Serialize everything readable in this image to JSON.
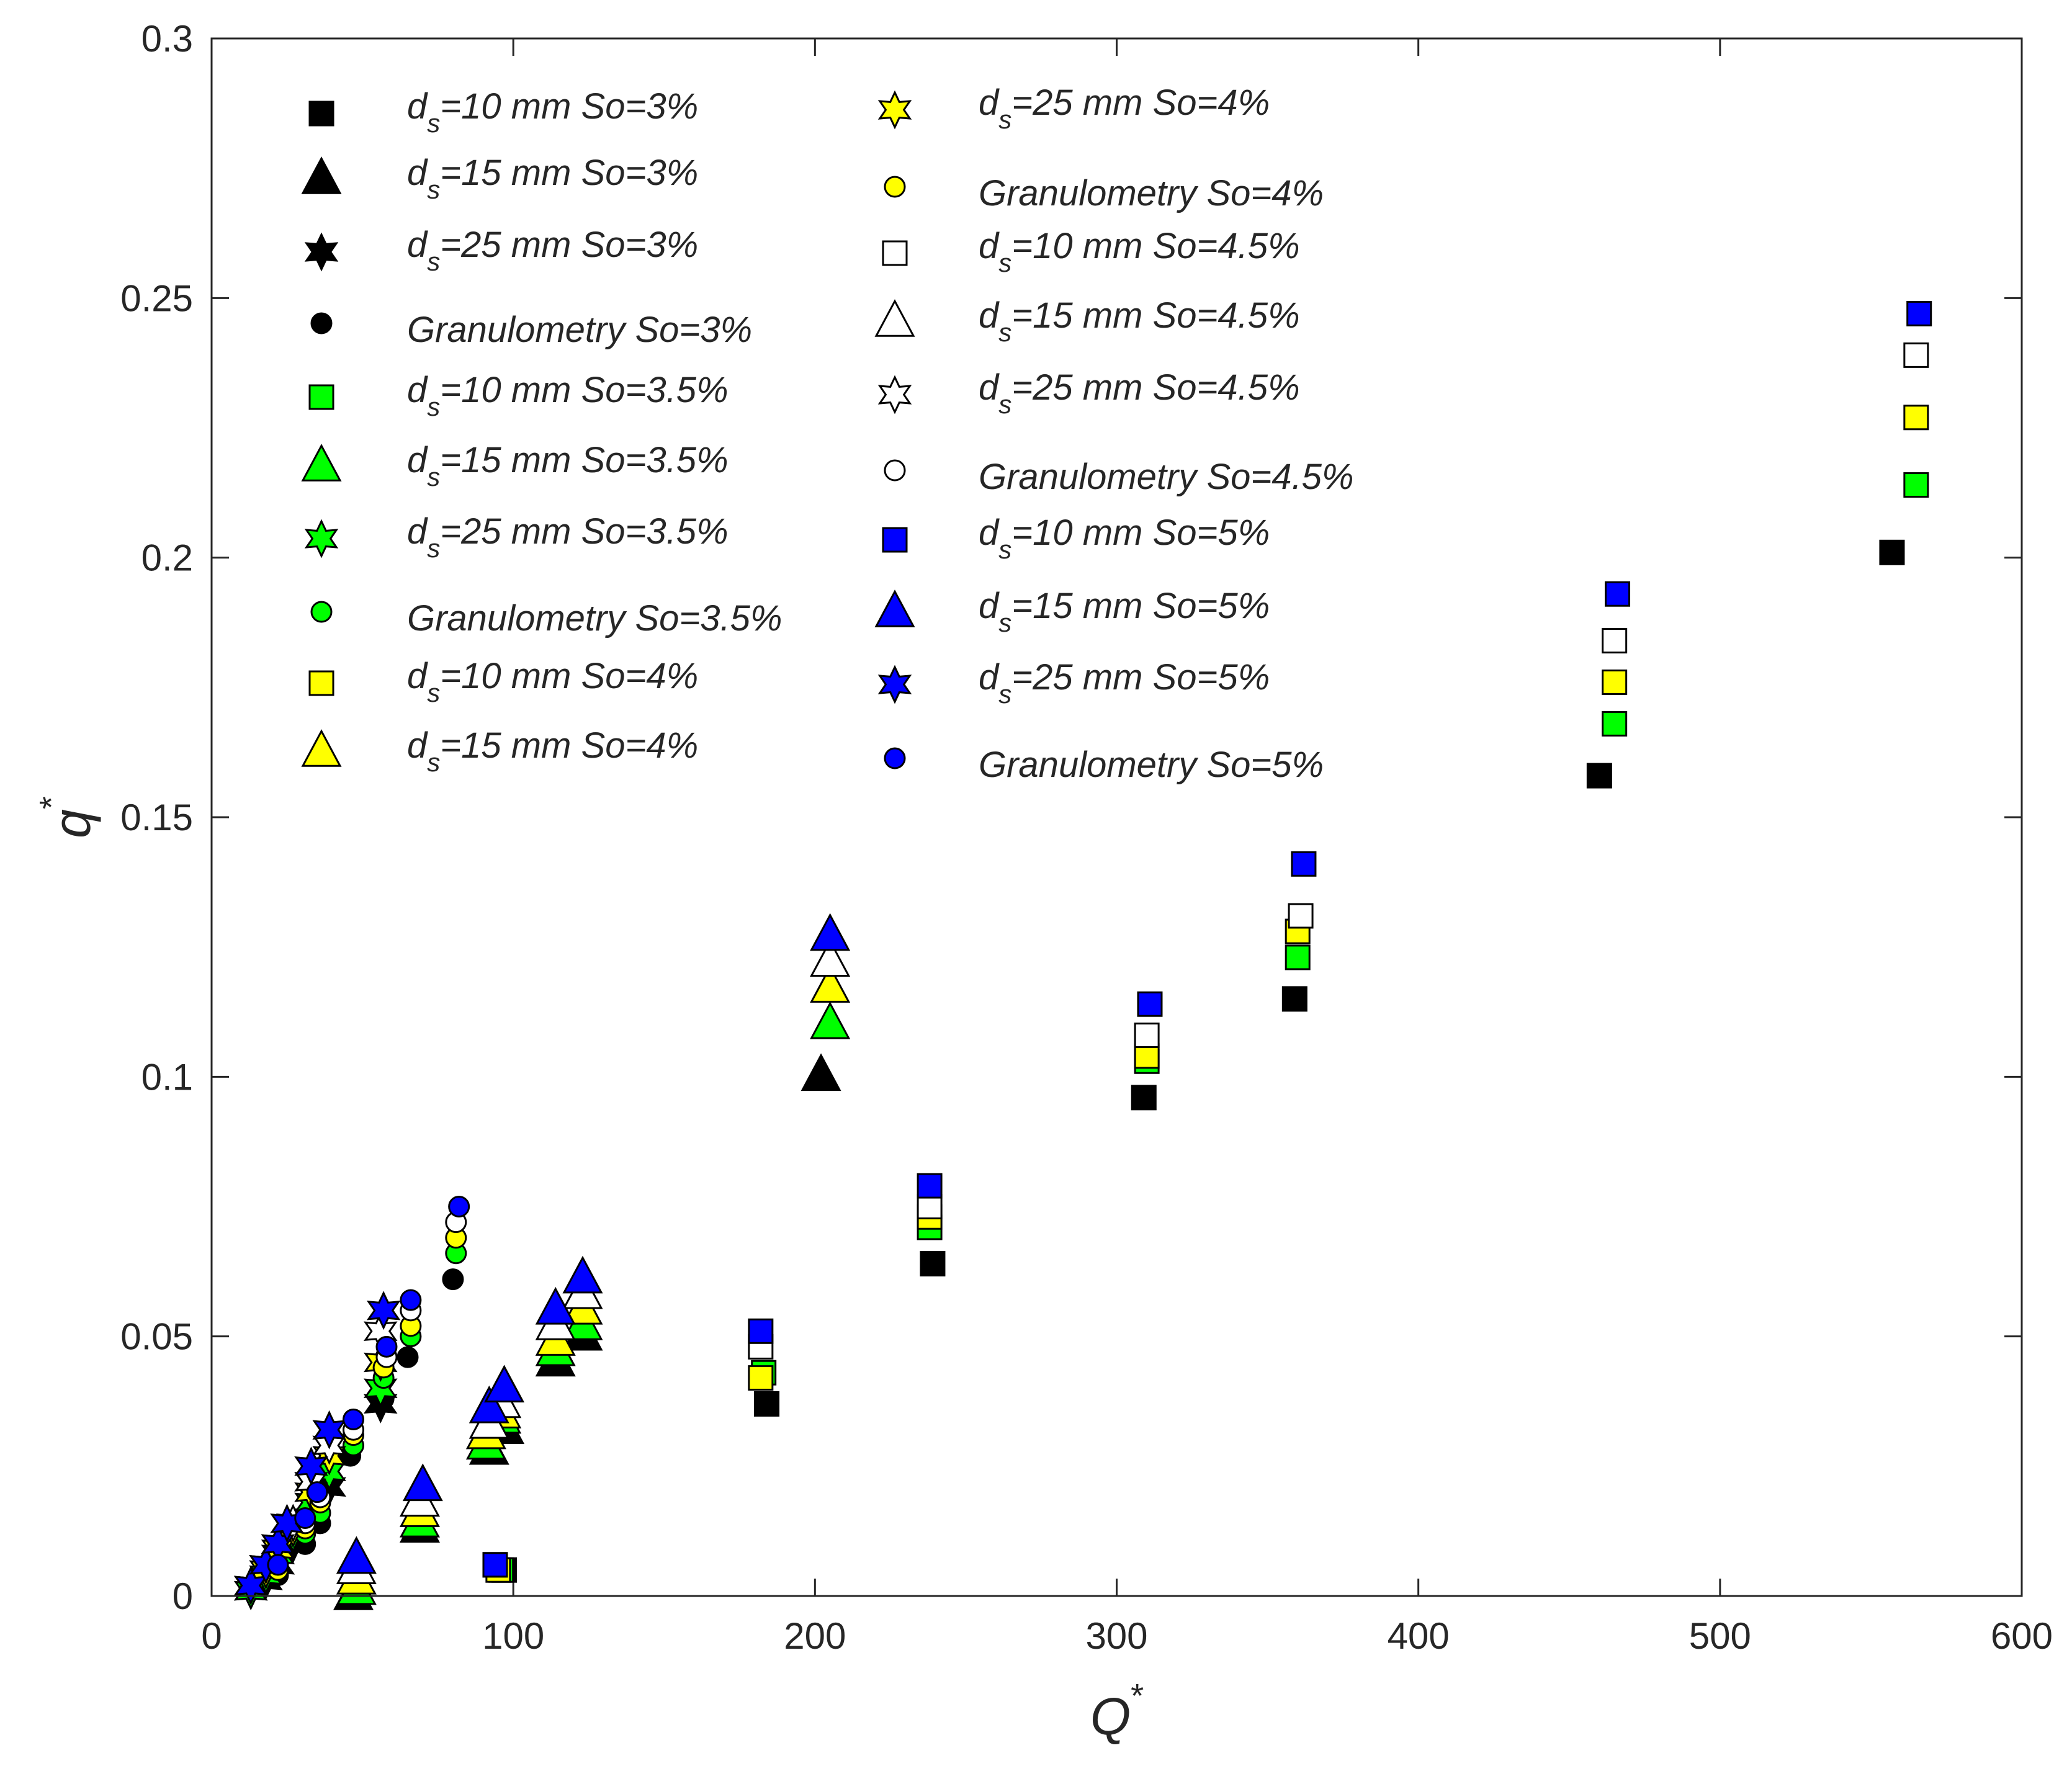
{
  "chart_data": {
    "type": "scatter",
    "title": "",
    "xlabel": "Q",
    "xlabel_sup": "*",
    "ylabel": "q",
    "ylabel_sup": "*",
    "xlim": [
      0,
      600
    ],
    "ylim": [
      0,
      0.3
    ],
    "xticks": [
      0,
      100,
      200,
      300,
      400,
      500,
      600
    ],
    "yticks": [
      0,
      0.05,
      0.1,
      0.15,
      0.2,
      0.25,
      0.3
    ],
    "xtick_labels": [
      "0",
      "100",
      "200",
      "300",
      "400",
      "500",
      "600"
    ],
    "ytick_labels": [
      "0",
      "0.05",
      "0.1",
      "0.15",
      "0.2",
      "0.25",
      "0.3"
    ],
    "grid": false,
    "legend_position": "top-left",
    "colors": {
      "So=3%": "#000000",
      "So=3.5%": "#00ff00",
      "So=4%": "#ffff00",
      "So=4.5%": "#ffffff",
      "So=5%": "#0000ff"
    },
    "series": [
      {
        "name": "d_s=10 mm So=3%",
        "label_parts": [
          "d",
          "s",
          "=10 mm So=3%"
        ],
        "marker": "square",
        "color": "#000000",
        "points": [
          [
            97,
            0.005
          ],
          [
            184,
            0.037
          ],
          [
            239,
            0.064
          ],
          [
            309,
            0.096
          ],
          [
            359,
            0.115
          ],
          [
            460,
            0.158
          ],
          [
            557,
            0.201
          ]
        ]
      },
      {
        "name": "d_s=15 mm So=3%",
        "label_parts": [
          "d",
          "s",
          "=15 mm So=3%"
        ],
        "marker": "triangle",
        "color": "#000000",
        "points": [
          [
            47,
            0.0
          ],
          [
            69,
            0.013
          ],
          [
            92,
            0.028
          ],
          [
            97,
            0.032
          ],
          [
            114,
            0.045
          ],
          [
            123,
            0.05
          ],
          [
            202,
            0.1
          ]
        ]
      },
      {
        "name": "d_s=25 mm So=3%",
        "label_parts": [
          "d",
          "s",
          "=25 mm So=3%"
        ],
        "marker": "star6",
        "color": "#000000",
        "points": [
          [
            13,
            0.001
          ],
          [
            18,
            0.003
          ],
          [
            22,
            0.006
          ],
          [
            27,
            0.01
          ],
          [
            33,
            0.015
          ],
          [
            39,
            0.021
          ],
          [
            56,
            0.037
          ]
        ]
      },
      {
        "name": "Granulometry So=3%",
        "label_parts": [
          "Granulometry So=3%"
        ],
        "marker": "circle",
        "color": "#000000",
        "points": [
          [
            22,
            0.004
          ],
          [
            31,
            0.01
          ],
          [
            36,
            0.014
          ],
          [
            46,
            0.027
          ],
          [
            57,
            0.038
          ],
          [
            65,
            0.046
          ],
          [
            80,
            0.061
          ]
        ]
      },
      {
        "name": "d_s=10 mm So=3.5%",
        "label_parts": [
          "d",
          "s",
          "=10 mm So=3.5%"
        ],
        "marker": "square",
        "color": "#00ff00",
        "points": [
          [
            96,
            0.005
          ],
          [
            183,
            0.043
          ],
          [
            238,
            0.071
          ],
          [
            310,
            0.103
          ],
          [
            360,
            0.123
          ],
          [
            465,
            0.168
          ],
          [
            565,
            0.214
          ]
        ]
      },
      {
        "name": "d_s=15 mm So=3.5%",
        "label_parts": [
          "d",
          "s",
          "=15 mm So=3.5%"
        ],
        "marker": "triangle",
        "color": "#00ff00",
        "points": [
          [
            48,
            0.001
          ],
          [
            69,
            0.014
          ],
          [
            91,
            0.029
          ],
          [
            96,
            0.034
          ],
          [
            114,
            0.047
          ],
          [
            123,
            0.052
          ],
          [
            205,
            0.11
          ]
        ]
      },
      {
        "name": "d_s=25 mm So=3.5%",
        "label_parts": [
          "d",
          "s",
          "=25 mm So=3.5%"
        ],
        "marker": "star6",
        "color": "#00ff00",
        "points": [
          [
            13,
            0.001
          ],
          [
            18,
            0.004
          ],
          [
            22,
            0.008
          ],
          [
            27,
            0.012
          ],
          [
            33,
            0.018
          ],
          [
            39,
            0.024
          ],
          [
            56,
            0.04
          ]
        ]
      },
      {
        "name": "Granulometry So=3.5%",
        "label_parts": [
          "Granulometry So=3.5%"
        ],
        "marker": "circle",
        "color": "#00ff00",
        "points": [
          [
            22,
            0.005
          ],
          [
            31,
            0.012
          ],
          [
            36,
            0.016
          ],
          [
            47,
            0.029
          ],
          [
            57,
            0.042
          ],
          [
            66,
            0.05
          ],
          [
            81,
            0.066
          ]
        ]
      },
      {
        "name": "d_s=10 mm So=4%",
        "label_parts": [
          "d",
          "s",
          "=10 mm So=4%"
        ],
        "marker": "square",
        "color": "#ffff00",
        "points": [
          [
            95,
            0.005
          ],
          [
            182,
            0.042
          ],
          [
            238,
            0.073
          ],
          [
            310,
            0.104
          ],
          [
            360,
            0.128
          ],
          [
            465,
            0.176
          ],
          [
            565,
            0.227
          ]
        ]
      },
      {
        "name": "d_s=15 mm So=4%",
        "label_parts": [
          "d",
          "s",
          "=15 mm So=4%"
        ],
        "marker": "triangle",
        "color": "#ffff00",
        "points": [
          [
            48,
            0.003
          ],
          [
            69,
            0.016
          ],
          [
            91,
            0.031
          ],
          [
            96,
            0.035
          ],
          [
            114,
            0.049
          ],
          [
            123,
            0.055
          ],
          [
            205,
            0.117
          ]
        ]
      },
      {
        "name": "d_s=25 mm So=4%",
        "label_parts": [
          "d",
          "s",
          "=25 mm So=4%"
        ],
        "marker": "star6",
        "color": "#ffff00",
        "points": [
          [
            13,
            0.002
          ],
          [
            18,
            0.005
          ],
          [
            22,
            0.009
          ],
          [
            27,
            0.013
          ],
          [
            33,
            0.02
          ],
          [
            39,
            0.027
          ],
          [
            56,
            0.045
          ]
        ]
      },
      {
        "name": "Granulometry So=4%",
        "label_parts": [
          "Granulometry So=4%"
        ],
        "marker": "circle",
        "color": "#ffff00",
        "points": [
          [
            22,
            0.005
          ],
          [
            31,
            0.013
          ],
          [
            36,
            0.018
          ],
          [
            47,
            0.031
          ],
          [
            57,
            0.044
          ],
          [
            66,
            0.052
          ],
          [
            81,
            0.069
          ]
        ]
      },
      {
        "name": "d_s=10 mm So=4.5%",
        "label_parts": [
          "d",
          "s",
          "=10 mm So=4.5%"
        ],
        "marker": "square",
        "color": "#ffffff",
        "points": [
          [
            94,
            0.006
          ],
          [
            182,
            0.048
          ],
          [
            238,
            0.075
          ],
          [
            310,
            0.108
          ],
          [
            361,
            0.131
          ],
          [
            465,
            0.184
          ],
          [
            565,
            0.239
          ]
        ]
      },
      {
        "name": "d_s=15 mm So=4.5%",
        "label_parts": [
          "d",
          "s",
          "=15 mm So=4.5%"
        ],
        "marker": "triangle",
        "color": "#ffffff",
        "points": [
          [
            48,
            0.005
          ],
          [
            69,
            0.018
          ],
          [
            92,
            0.033
          ],
          [
            96,
            0.037
          ],
          [
            114,
            0.052
          ],
          [
            123,
            0.058
          ],
          [
            205,
            0.122
          ]
        ]
      },
      {
        "name": "d_s=25 mm So=4.5%",
        "label_parts": [
          "d",
          "s",
          "=25 mm So=4.5%"
        ],
        "marker": "star6",
        "color": "#ffffff",
        "points": [
          [
            13,
            0.002
          ],
          [
            18,
            0.006
          ],
          [
            22,
            0.01
          ],
          [
            27,
            0.014
          ],
          [
            33,
            0.022
          ],
          [
            39,
            0.029
          ],
          [
            56,
            0.051
          ]
        ]
      },
      {
        "name": "Granulometry So=4.5%",
        "label_parts": [
          "Granulometry So=4.5%"
        ],
        "marker": "circle",
        "color": "#ffffff",
        "points": [
          [
            22,
            0.006
          ],
          [
            31,
            0.014
          ],
          [
            36,
            0.019
          ],
          [
            47,
            0.032
          ],
          [
            58,
            0.046
          ],
          [
            66,
            0.055
          ],
          [
            81,
            0.072
          ]
        ]
      },
      {
        "name": "d_s=10 mm So=5%",
        "label_parts": [
          "d",
          "s",
          "=10 mm So=5%"
        ],
        "marker": "square",
        "color": "#0000ff",
        "points": [
          [
            94,
            0.006
          ],
          [
            182,
            0.051
          ],
          [
            238,
            0.079
          ],
          [
            311,
            0.114
          ],
          [
            362,
            0.141
          ],
          [
            466,
            0.193
          ],
          [
            566,
            0.247
          ]
        ]
      },
      {
        "name": "d_s=15 mm So=5%",
        "label_parts": [
          "d",
          "s",
          "=15 mm So=5%"
        ],
        "marker": "triangle",
        "color": "#0000ff",
        "points": [
          [
            48,
            0.007
          ],
          [
            70,
            0.021
          ],
          [
            92,
            0.036
          ],
          [
            97,
            0.04
          ],
          [
            114,
            0.055
          ],
          [
            123,
            0.061
          ],
          [
            205,
            0.127
          ]
        ]
      },
      {
        "name": "d_s=25 mm So=5%",
        "label_parts": [
          "d",
          "s",
          "=25 mm So=5%"
        ],
        "marker": "star6",
        "color": "#0000ff",
        "points": [
          [
            13,
            0.002
          ],
          [
            18,
            0.006
          ],
          [
            22,
            0.01
          ],
          [
            25,
            0.014
          ],
          [
            33,
            0.025
          ],
          [
            39,
            0.032
          ],
          [
            57,
            0.055
          ]
        ]
      },
      {
        "name": "Granulometry So=5%",
        "label_parts": [
          "Granulometry So=5%"
        ],
        "marker": "circle",
        "color": "#0000ff",
        "points": [
          [
            22,
            0.006
          ],
          [
            31,
            0.015
          ],
          [
            35,
            0.02
          ],
          [
            47,
            0.034
          ],
          [
            58,
            0.048
          ],
          [
            66,
            0.057
          ],
          [
            82,
            0.075
          ]
        ]
      }
    ]
  }
}
